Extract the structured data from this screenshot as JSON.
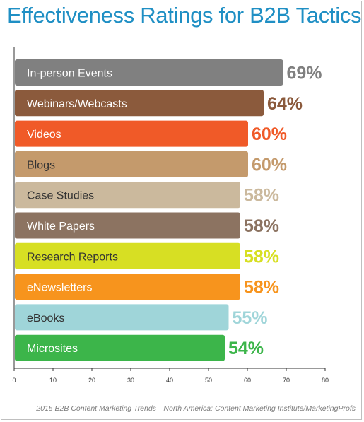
{
  "chart_data": {
    "type": "bar",
    "orientation": "horizontal",
    "title": "Effectiveness Ratings for B2B Tactics",
    "source": "2015 B2B Content Marketing Trends—North America: Content Marketing Institute/MarketingProfs",
    "xlim": [
      0,
      80
    ],
    "x_ticks": [
      "0",
      "10",
      "20",
      "30",
      "40",
      "50",
      "60",
      "70",
      "80"
    ],
    "grid": false,
    "bars": [
      {
        "category": "In-person Events",
        "value": 69,
        "value_label": "69%",
        "color": "#808080",
        "label_color": "#ffffff",
        "value_color": "#808080"
      },
      {
        "category": "Webinars/Webcasts",
        "value": 64,
        "value_label": "64%",
        "color": "#8b5a3c",
        "label_color": "#ffffff",
        "value_color": "#8b5a3c"
      },
      {
        "category": "Videos",
        "value": 60,
        "value_label": "60%",
        "color": "#f05a28",
        "label_color": "#ffffff",
        "value_color": "#f05a28"
      },
      {
        "category": "Blogs",
        "value": 60,
        "value_label": "60%",
        "color": "#c49a6c",
        "label_color": "#333333",
        "value_color": "#c49a6c"
      },
      {
        "category": "Case Studies",
        "value": 58,
        "value_label": "58%",
        "color": "#cbb99d",
        "label_color": "#333333",
        "value_color": "#cbb99d"
      },
      {
        "category": "White Papers",
        "value": 58,
        "value_label": "58%",
        "color": "#8c7361",
        "label_color": "#ffffff",
        "value_color": "#8c7361"
      },
      {
        "category": "Research Reports",
        "value": 58,
        "value_label": "58%",
        "color": "#d7df23",
        "label_color": "#333333",
        "value_color": "#d7df23"
      },
      {
        "category": "eNewsletters",
        "value": 58,
        "value_label": "58%",
        "color": "#f7941d",
        "label_color": "#ffffff",
        "value_color": "#f7941d"
      },
      {
        "category": "eBooks",
        "value": 55,
        "value_label": "55%",
        "color": "#9fd5d9",
        "label_color": "#333333",
        "value_color": "#9fd5d9"
      },
      {
        "category": "Microsites",
        "value": 54,
        "value_label": "54%",
        "color": "#3cb54a",
        "label_color": "#ffffff",
        "value_color": "#3cb54a"
      }
    ]
  }
}
